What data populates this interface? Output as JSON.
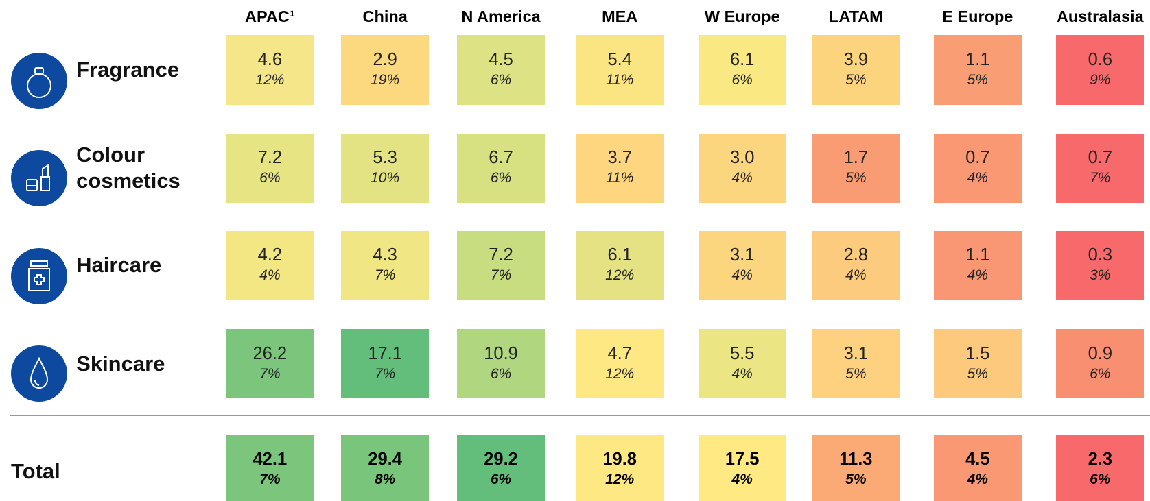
{
  "columns": [
    "APAC¹",
    "China",
    "N America",
    "MEA",
    "W Europe",
    "LATAM",
    "E Europe",
    "Australasia"
  ],
  "rows": [
    {
      "label": "Fragrance",
      "values": [
        "4.6",
        "2.9",
        "4.5",
        "5.4",
        "6.1",
        "3.9",
        "1.1",
        "0.6"
      ],
      "growth": [
        "12%",
        "19%",
        "6%",
        "11%",
        "6%",
        "5%",
        "5%",
        "9%"
      ],
      "colors": [
        "#f5e68a",
        "#fcd97e",
        "#dde384",
        "#fbe583",
        "#fae882",
        "#fcd47e",
        "#f99e74",
        "#f8696b"
      ]
    },
    {
      "label": "Colour cosmetics",
      "values": [
        "7.2",
        "5.3",
        "6.7",
        "3.7",
        "3.0",
        "1.7",
        "0.7",
        "0.7"
      ],
      "growth": [
        "6%",
        "10%",
        "6%",
        "11%",
        "4%",
        "5%",
        "4%",
        "7%"
      ],
      "colors": [
        "#e6e483",
        "#e3e383",
        "#d7e182",
        "#fdd67f",
        "#fcd67f",
        "#fa9c73",
        "#fa9874",
        "#f8696b"
      ]
    },
    {
      "label": "Haircare",
      "values": [
        "4.2",
        "4.3",
        "7.2",
        "6.1",
        "3.1",
        "2.8",
        "1.1",
        "0.3"
      ],
      "growth": [
        "4%",
        "7%",
        "7%",
        "12%",
        "4%",
        "4%",
        "4%",
        "3%"
      ],
      "colors": [
        "#f3e783",
        "#f0e683",
        "#c8dc80",
        "#e4e283",
        "#fcd57f",
        "#fdcb7d",
        "#f99774",
        "#f8696b"
      ]
    },
    {
      "label": "Skincare",
      "values": [
        "26.2",
        "17.1",
        "10.9",
        "4.7",
        "5.5",
        "3.1",
        "1.5",
        "0.9"
      ],
      "growth": [
        "7%",
        "7%",
        "6%",
        "12%",
        "4%",
        "5%",
        "5%",
        "6%"
      ],
      "colors": [
        "#7bc57c",
        "#63be7b",
        "#b0d680",
        "#fee884",
        "#ebe583",
        "#fdd17f",
        "#fdc97d",
        "#f98f71"
      ]
    }
  ],
  "total": {
    "label": "Total",
    "values": [
      "42.1",
      "29.4",
      "29.2",
      "19.8",
      "17.5",
      "11.3",
      "4.5",
      "2.3"
    ],
    "growth": [
      "7%",
      "8%",
      "6%",
      "12%",
      "4%",
      "5%",
      "4%",
      "6%"
    ],
    "colors": [
      "#7bc57c",
      "#7ac57c",
      "#63be7b",
      "#fee883",
      "#fee983",
      "#fbaa76",
      "#f99873",
      "#f8696b"
    ]
  }
}
